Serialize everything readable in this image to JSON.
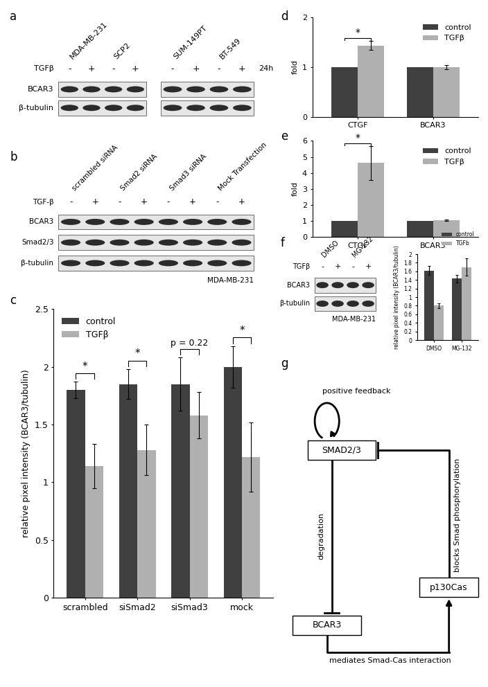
{
  "chart_data": [
    {
      "panel": "c",
      "type": "bar",
      "y_label": "relative pixel intensity (BCAR3/tubulin)",
      "categories": [
        "scrambled",
        "siSmad2",
        "siSmad3",
        "mock"
      ],
      "series": [
        {
          "name": "control",
          "color": "#404040",
          "values": [
            1.8,
            1.85,
            1.85,
            2.0
          ],
          "errors": [
            0.07,
            0.13,
            0.23,
            0.18
          ]
        },
        {
          "name": "TGFβ",
          "color": "#b0b0b0",
          "values": [
            1.14,
            1.28,
            1.58,
            1.22
          ],
          "errors": [
            0.19,
            0.22,
            0.2,
            0.3
          ]
        }
      ],
      "ylim": [
        0,
        2.5
      ],
      "yticks": [
        0,
        0.5,
        1,
        1.5,
        2,
        2.5
      ],
      "legend": "upper left",
      "annotations": [
        {
          "text": "*",
          "category": "scrambled"
        },
        {
          "text": "*",
          "category": "siSmad2"
        },
        {
          "text": "p = 0.22",
          "category": "siSmad3"
        },
        {
          "text": "*",
          "category": "mock"
        }
      ]
    },
    {
      "panel": "d",
      "type": "bar",
      "y_label": "fold",
      "categories": [
        "CTGF",
        "BCAR3"
      ],
      "series": [
        {
          "name": "control",
          "color": "#404040",
          "values": [
            1,
            1
          ]
        },
        {
          "name": "TGFβ",
          "color": "#b0b0b0",
          "values": [
            1.43,
            1.0
          ],
          "errors": [
            0.09,
            0.04
          ]
        }
      ],
      "ylim": [
        0,
        2
      ],
      "yticks": [
        0,
        1,
        2
      ],
      "legend": "upper right",
      "annotations": [
        {
          "text": "*",
          "category": "CTGF"
        }
      ]
    },
    {
      "panel": "e",
      "type": "bar",
      "y_label": "fold",
      "categories": [
        "CTGF",
        "BCAR3"
      ],
      "series": [
        {
          "name": "control",
          "color": "#404040",
          "values": [
            1,
            1
          ]
        },
        {
          "name": "TGFβ",
          "color": "#b0b0b0",
          "values": [
            4.62,
            1.05
          ],
          "errors": [
            1.05,
            0.05
          ]
        }
      ],
      "ylim": [
        0,
        6
      ],
      "yticks": [
        0,
        1,
        2,
        3,
        4,
        5,
        6
      ],
      "legend": "upper right",
      "annotations": [
        {
          "text": "*",
          "category": "CTGF"
        }
      ]
    },
    {
      "type": "bar",
      "y_label": "relative pixel intensity (BCAR3/tubulin)",
      "categories": [
        "DMSO",
        "MG-132"
      ],
      "series": [
        {
          "name": "control",
          "color": "#404040",
          "values": [
            1.62,
            1.43
          ],
          "errors": [
            0.1,
            0.09
          ]
        },
        {
          "name": "TGFb",
          "color": "#b0b0b0",
          "values": [
            0.8,
            1.7
          ],
          "errors": [
            0.05,
            0.2
          ]
        }
      ],
      "ylim": [
        0,
        2
      ],
      "yticks": [
        0,
        0.2,
        0.4,
        0.6,
        0.8,
        1,
        1.2,
        1.4,
        1.6,
        1.8,
        2
      ],
      "legend": "upper right"
    }
  ],
  "blots": [
    {
      "panel": "a",
      "treatment_label": "TGFβ",
      "time": "24h",
      "rows": [
        "BCAR3",
        "β-tubulin"
      ],
      "groups": [
        {
          "headers": [
            "MDA-MB-231",
            "SCP2"
          ],
          "treatment": [
            "-",
            "+",
            "-",
            "+"
          ]
        },
        {
          "headers": [
            "SUM-149PT",
            "BT-549"
          ],
          "treatment": [
            "-",
            "+",
            "-",
            "+"
          ]
        }
      ]
    },
    {
      "panel": "b",
      "treatment_label": "TGF-β",
      "rows": [
        "BCAR3",
        "Smad2/3",
        "β-tubulin"
      ],
      "cell_line": "MDA-MB-231",
      "groups": [
        {
          "headers": [
            "scrambled siRNA",
            "Smad2 siRNA",
            "Smad3 siRNA",
            "Mock Transfection"
          ],
          "treatment": [
            "-",
            "+",
            "-",
            "+",
            "-",
            "+",
            "-",
            "+"
          ]
        }
      ]
    },
    {
      "panel": "f",
      "treatment_label": "TGFβ",
      "rows": [
        "BCAR3",
        "β-tubulin"
      ],
      "cell_line": "MDA-MB-231",
      "groups": [
        {
          "headers": [
            "DMSO",
            "MG-132"
          ],
          "treatment": [
            "-",
            "+",
            "-",
            "+"
          ]
        }
      ]
    }
  ],
  "diagram": {
    "panel": "g",
    "nodes": [
      "SMAD2/3",
      "p130Cas",
      "BCAR3"
    ],
    "edges": [
      {
        "from": "SMAD2/3",
        "to": "SMAD2/3",
        "label": "positive feedback",
        "kind": "activates"
      },
      {
        "from": "SMAD2/3",
        "to": "BCAR3",
        "label": "degradation",
        "kind": "inhibits"
      },
      {
        "from": "BCAR3",
        "to": "p130Cas",
        "label": "mediates Smad-Cas interaction",
        "kind": "activates"
      },
      {
        "from": "p130Cas",
        "to": "SMAD2/3",
        "label": "blocks Smad phosphorylation",
        "kind": "inhibits"
      }
    ]
  }
}
